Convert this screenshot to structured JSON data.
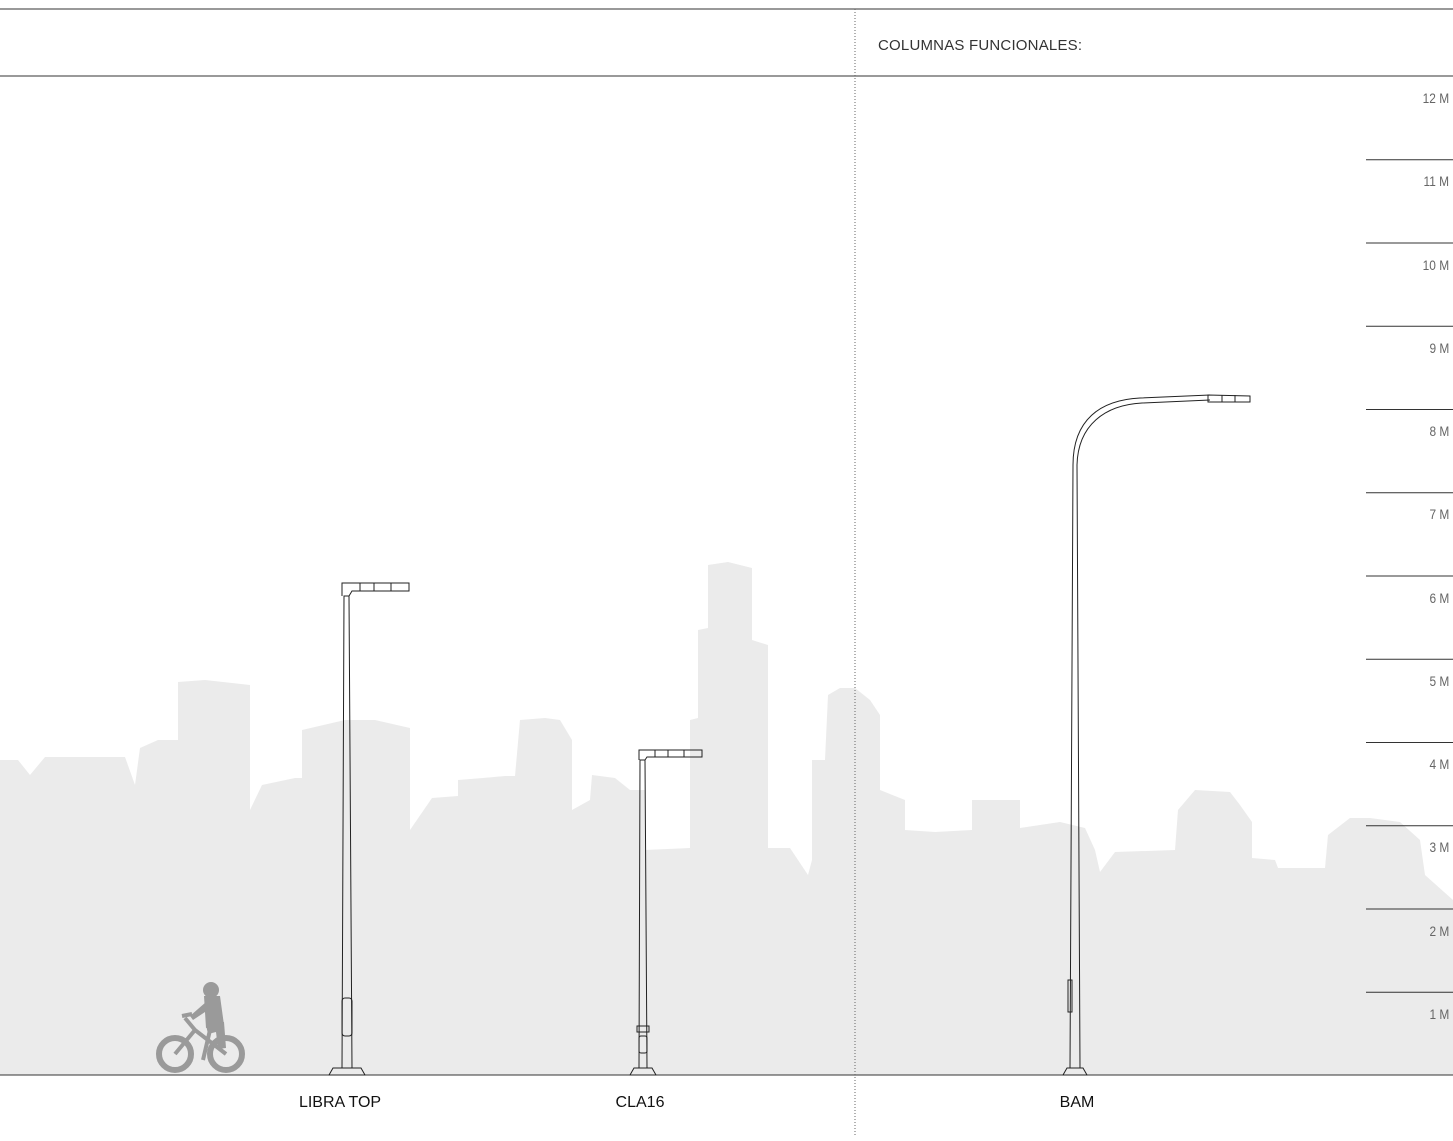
{
  "section_title": "COLUMNAS FUNCIONALES:",
  "height_scale": [
    {
      "label": "12 M",
      "value": 12
    },
    {
      "label": "11 M",
      "value": 11
    },
    {
      "label": "10 M",
      "value": 10
    },
    {
      "label": "9 M",
      "value": 9
    },
    {
      "label": "8 M",
      "value": 8
    },
    {
      "label": "7 M",
      "value": 7
    },
    {
      "label": "6 M",
      "value": 6
    },
    {
      "label": "5 M",
      "value": 5
    },
    {
      "label": "4 M",
      "value": 4
    },
    {
      "label": "3 M",
      "value": 3
    },
    {
      "label": "2 M",
      "value": 2
    },
    {
      "label": "1 M",
      "value": 1
    }
  ],
  "poles": [
    {
      "name": "LIBRA TOP",
      "height_m": 6.0,
      "arm": "L-bracket"
    },
    {
      "name": "CLA16",
      "height_m": 4.0,
      "arm": "L-bracket"
    },
    {
      "name": "BAM",
      "height_m": 8.0,
      "arm": "curved"
    }
  ],
  "colors": {
    "skyline": "#ebebeb",
    "pole_stroke": "#222222",
    "cyclist": "#9a9a9a",
    "rule": "#333333"
  }
}
